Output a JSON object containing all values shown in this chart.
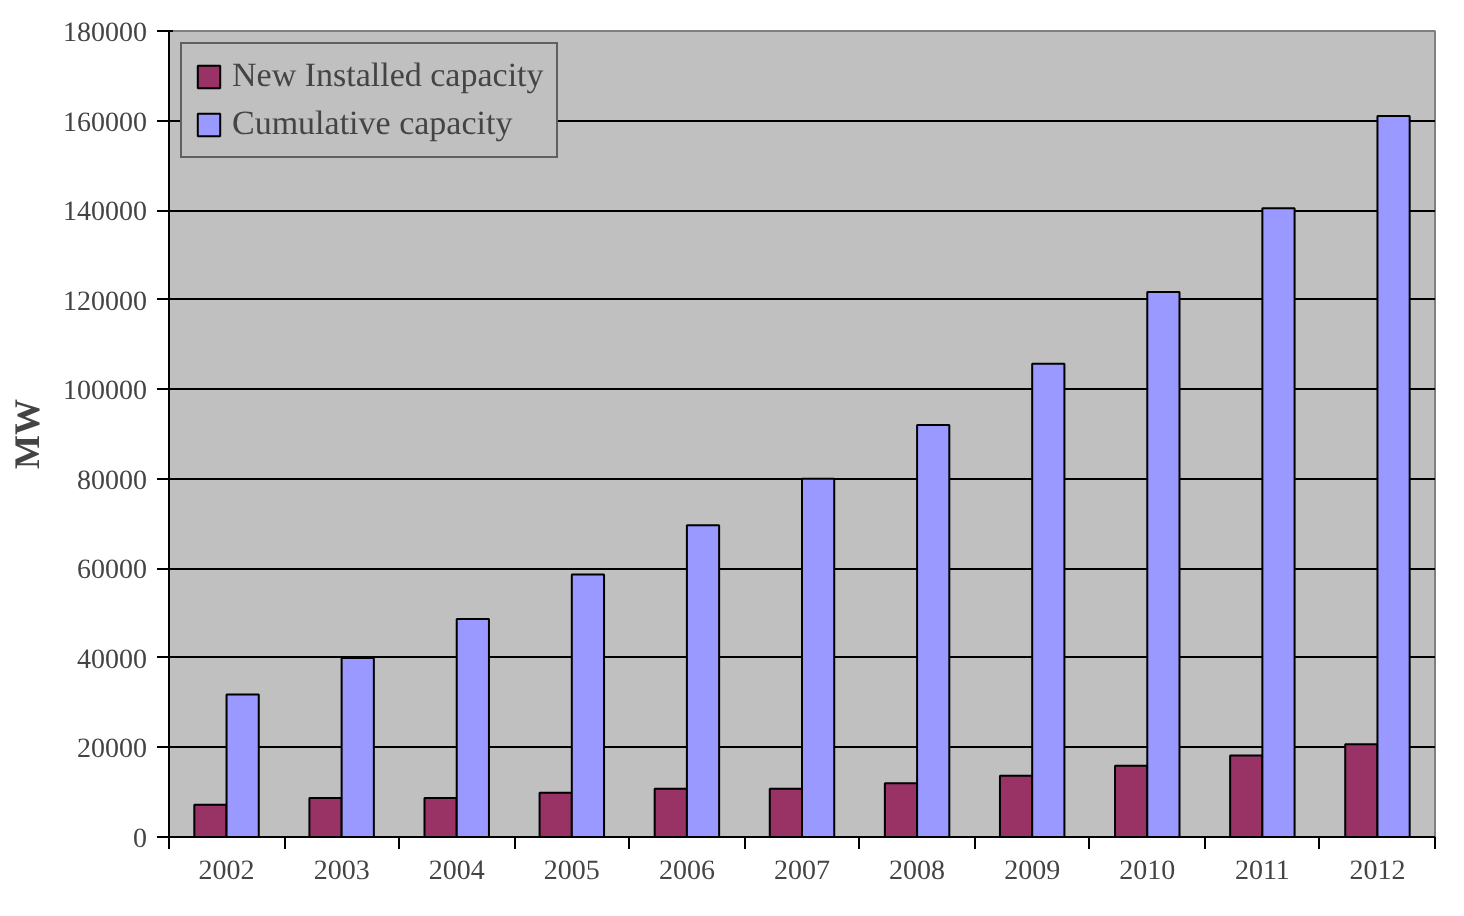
{
  "chart_data": {
    "type": "bar",
    "ylabel": "MW",
    "categories": [
      "2002",
      "2003",
      "2004",
      "2005",
      "2006",
      "2007",
      "2008",
      "2009",
      "2010",
      "2011",
      "2012"
    ],
    "series": [
      {
        "name": "New Installed capacity",
        "color": "#993366",
        "values": [
          7200,
          8700,
          8700,
          9900,
          10800,
          10800,
          12000,
          13700,
          15900,
          18200,
          20700
        ]
      },
      {
        "name": "Cumulative capacity",
        "color": "#9999ff",
        "values": [
          31800,
          40000,
          48700,
          58600,
          69600,
          80000,
          92000,
          105700,
          121700,
          140400,
          161000
        ]
      }
    ],
    "ylim": [
      0,
      180000
    ],
    "yticks": [
      0,
      20000,
      40000,
      60000,
      80000,
      100000,
      120000,
      140000,
      160000,
      180000
    ],
    "grid": "y",
    "legend": "top left"
  }
}
